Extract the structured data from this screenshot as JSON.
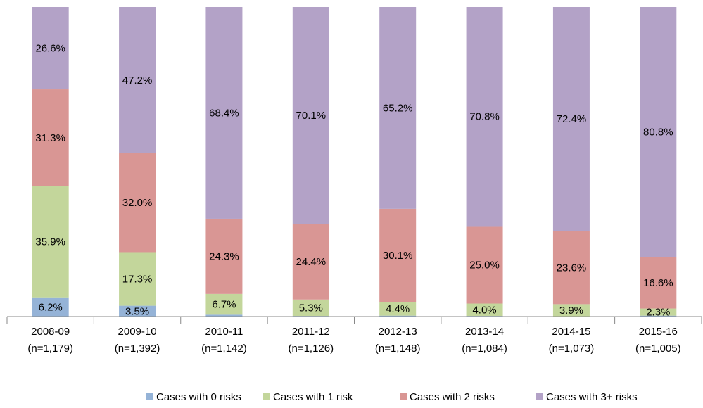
{
  "chart_data": {
    "type": "stacked_bar",
    "categories": [
      "2008-09",
      "2009-10",
      "2010-11",
      "2011-12",
      "2012-13",
      "2013-14",
      "2014-15",
      "2015-16"
    ],
    "category_sublabels": [
      "(n=1,179)",
      "(n=1,392)",
      "(n=1,142)",
      "(n=1,126)",
      "(n=1,148)",
      "(n=1,084)",
      "(n=1,073)",
      "(n=1,005)"
    ],
    "ylim": [
      0,
      100
    ],
    "series": [
      {
        "name": "Cases with 0 risks",
        "color": "#95b3d7",
        "values": [
          6.2,
          3.5,
          0.6,
          0.2,
          0.3,
          0.2,
          0.1,
          0.3
        ],
        "value_labels": [
          "6.2%",
          "3.5%",
          null,
          null,
          null,
          null,
          null,
          null
        ]
      },
      {
        "name": "Cases with 1 risk",
        "color": "#c3d69b",
        "values": [
          35.9,
          17.3,
          6.7,
          5.3,
          4.4,
          4.0,
          3.9,
          2.3
        ],
        "value_labels": [
          "35.9%",
          "17.3%",
          "6.7%",
          "5.3%",
          "4.4%",
          "4.0%",
          "3.9%",
          "2.3%"
        ]
      },
      {
        "name": "Cases with 2 risks",
        "color": "#d99694",
        "values": [
          31.3,
          32.0,
          24.3,
          24.4,
          30.1,
          25.0,
          23.6,
          16.6
        ],
        "value_labels": [
          "31.3%",
          "32.0%",
          "24.3%",
          "24.4%",
          "30.1%",
          "25.0%",
          "23.6%",
          "16.6%"
        ]
      },
      {
        "name": "Cases with 3+ risks",
        "color": "#b3a2c7",
        "values": [
          26.6,
          47.2,
          68.4,
          70.1,
          65.2,
          70.8,
          72.4,
          80.8
        ],
        "value_labels": [
          "26.6%",
          "47.2%",
          "68.4%",
          "70.1%",
          "65.2%",
          "70.8%",
          "72.4%",
          "80.8%"
        ]
      }
    ],
    "legend": "bottom"
  }
}
